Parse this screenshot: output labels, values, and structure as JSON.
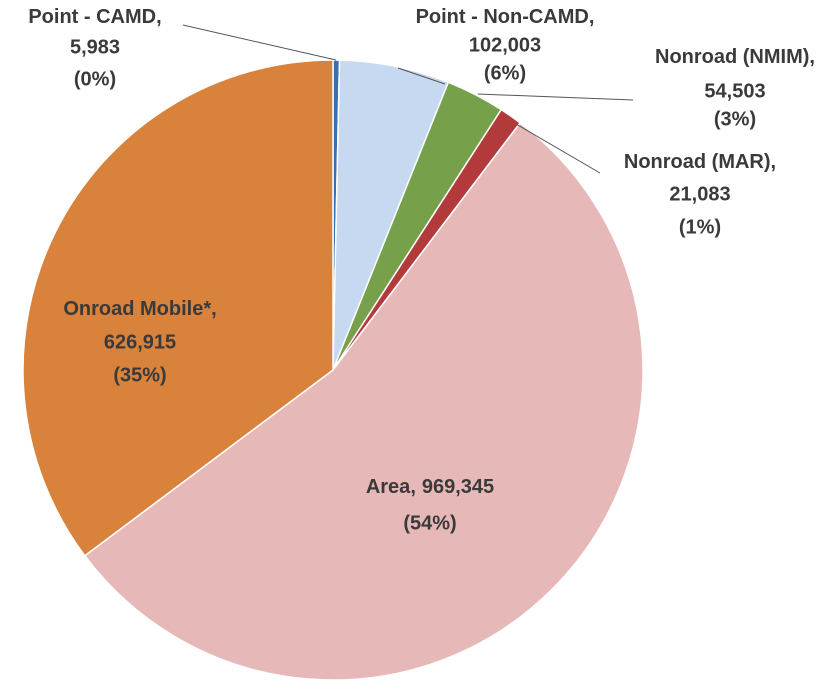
{
  "chart_data": {
    "type": "pie",
    "categories": [
      "Point - CAMD",
      "Point - Non-CAMD",
      "Nonroad (NMIM)",
      "Nonroad (MAR)",
      "Area",
      "Onroad Mobile*"
    ],
    "values": [
      5983,
      102003,
      54503,
      21083,
      969345,
      626915
    ],
    "value_labels": [
      "5,983",
      "102,003",
      "54,503",
      "21,083",
      "969,345",
      "626,915"
    ],
    "percent_labels": [
      "(0%)",
      "(6%)",
      "(3%)",
      "(1%)",
      "(54%)",
      "(35%)"
    ],
    "label_separator": ",",
    "colors": [
      "#3a6fb0",
      "#c6d9f1",
      "#77a04a",
      "#b33a3a",
      "#e6b9b8",
      "#d9823b"
    ]
  }
}
